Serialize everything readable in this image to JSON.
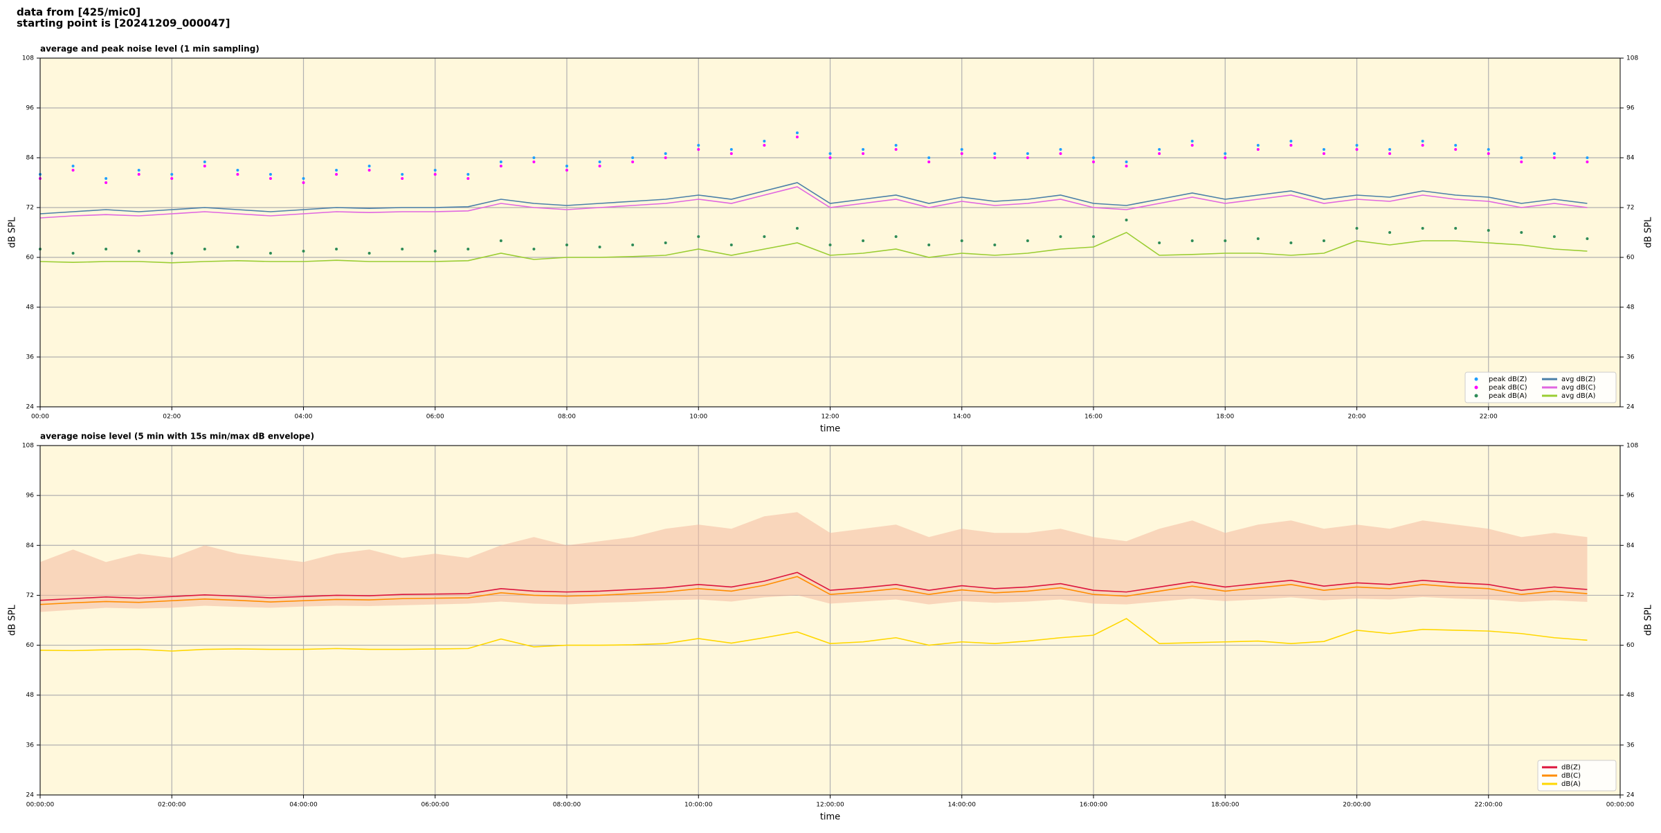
{
  "header": {
    "line1": "data from [425/mic0]",
    "line2": "starting point is [20241209_000047]"
  },
  "chart_data": [
    {
      "type": "line",
      "title": "average and peak noise level (1 min sampling)",
      "xlabel": "time",
      "ylabel": "dB SPL",
      "x": [
        0,
        0.5,
        1,
        1.5,
        2,
        2.5,
        3,
        3.5,
        4,
        4.5,
        5,
        5.5,
        6,
        6.5,
        7,
        7.5,
        8,
        8.5,
        9,
        9.5,
        10,
        10.5,
        11,
        11.5,
        12,
        12.5,
        13,
        13.5,
        14,
        14.5,
        15,
        15.5,
        16,
        16.5,
        17,
        17.5,
        18,
        18.5,
        19,
        19.5,
        20,
        20.5,
        21,
        21.5,
        22,
        22.5,
        23,
        23.5
      ],
      "xlim": [
        0,
        24
      ],
      "xticks": [
        {
          "value": 0,
          "label": "00:00"
        },
        {
          "value": 2,
          "label": "02:00"
        },
        {
          "value": 4,
          "label": "04:00"
        },
        {
          "value": 6,
          "label": "06:00"
        },
        {
          "value": 8,
          "label": "08:00"
        },
        {
          "value": 10,
          "label": "10:00"
        },
        {
          "value": 12,
          "label": "12:00"
        },
        {
          "value": 14,
          "label": "14:00"
        },
        {
          "value": 16,
          "label": "16:00"
        },
        {
          "value": 18,
          "label": "18:00"
        },
        {
          "value": 20,
          "label": "20:00"
        },
        {
          "value": 22,
          "label": "22:00"
        }
      ],
      "ylim": [
        24,
        108
      ],
      "yticks": [
        24,
        36,
        48,
        60,
        72,
        84,
        96,
        108
      ],
      "grid": true,
      "legend": "lower right",
      "legend_columns": 2,
      "series": [
        {
          "name": "peak dB(Z)",
          "style": "dot",
          "color": "#1f9fff",
          "values": [
            80,
            82,
            79,
            81,
            80,
            83,
            81,
            80,
            79,
            81,
            82,
            80,
            81,
            80,
            83,
            84,
            82,
            83,
            84,
            85,
            87,
            86,
            88,
            90,
            85,
            86,
            87,
            84,
            86,
            85,
            85,
            86,
            84,
            83,
            86,
            88,
            85,
            87,
            88,
            86,
            87,
            86,
            88,
            87,
            86,
            84,
            85,
            84
          ]
        },
        {
          "name": "peak dB(C)",
          "style": "dot",
          "color": "#ff00ff",
          "values": [
            79,
            81,
            78,
            80,
            79,
            82,
            80,
            79,
            78,
            80,
            81,
            79,
            80,
            79,
            82,
            83,
            81,
            82,
            83,
            84,
            86,
            85,
            87,
            89,
            84,
            85,
            86,
            83,
            85,
            84,
            84,
            85,
            83,
            82,
            85,
            87,
            84,
            86,
            87,
            85,
            86,
            85,
            87,
            86,
            85,
            83,
            84,
            83
          ]
        },
        {
          "name": "peak dB(A)",
          "style": "dot",
          "color": "#2e8b57",
          "values": [
            62,
            61,
            62,
            61.5,
            61,
            62,
            62.5,
            61,
            61.5,
            62,
            61,
            62,
            61.5,
            62,
            64,
            62,
            63,
            62.5,
            63,
            63.5,
            65,
            63,
            65,
            67,
            63,
            64,
            65,
            63,
            64,
            63,
            64,
            65,
            65,
            69,
            63.5,
            64,
            64,
            64.5,
            63.5,
            64,
            67,
            66,
            67,
            67,
            66.5,
            66,
            65,
            64.5
          ]
        },
        {
          "name": "avg dB(Z)",
          "style": "line",
          "color": "#4a7fa8",
          "values": [
            70.5,
            71,
            71.5,
            71,
            71.5,
            72,
            71.5,
            71,
            71.5,
            72,
            71.8,
            72,
            72,
            72.2,
            74,
            73,
            72.5,
            73,
            73.5,
            74,
            75,
            74,
            76,
            78,
            73,
            74,
            75,
            73,
            74.5,
            73.5,
            74,
            75,
            73,
            72.5,
            74,
            75.5,
            74,
            75,
            76,
            74,
            75,
            74.5,
            76,
            75,
            74.5,
            73,
            74,
            73
          ]
        },
        {
          "name": "avg dB(C)",
          "style": "line",
          "color": "#e066e0",
          "values": [
            69.5,
            70,
            70.3,
            70,
            70.5,
            71,
            70.5,
            70,
            70.5,
            71,
            70.8,
            71,
            71,
            71.2,
            73,
            72,
            71.5,
            72,
            72.5,
            73,
            74,
            73,
            75,
            77,
            72,
            73,
            74,
            72,
            73.5,
            72.5,
            73,
            74,
            72,
            71.5,
            73,
            74.5,
            73,
            74,
            75,
            73,
            74,
            73.5,
            75,
            74,
            73.5,
            72,
            73,
            72
          ]
        },
        {
          "name": "avg dB(A)",
          "style": "line",
          "color": "#9acd32",
          "values": [
            59,
            58.8,
            59,
            59,
            58.7,
            59,
            59.2,
            59,
            59,
            59.3,
            59,
            59,
            59,
            59.2,
            61,
            59.5,
            60,
            60,
            60.2,
            60.5,
            62,
            60.5,
            62,
            63.5,
            60.5,
            61,
            62,
            60,
            61,
            60.5,
            61,
            62,
            62.5,
            66,
            60.5,
            60.7,
            61,
            61,
            60.5,
            61,
            64,
            63,
            64,
            64,
            63.5,
            63,
            62,
            61.5
          ]
        }
      ]
    },
    {
      "type": "line",
      "title": "average noise level (5 min with 15s min/max dB envelope)",
      "xlabel": "time",
      "ylabel": "dB SPL",
      "x": [
        0,
        0.5,
        1,
        1.5,
        2,
        2.5,
        3,
        3.5,
        4,
        4.5,
        5,
        5.5,
        6,
        6.5,
        7,
        7.5,
        8,
        8.5,
        9,
        9.5,
        10,
        10.5,
        11,
        11.5,
        12,
        12.5,
        13,
        13.5,
        14,
        14.5,
        15,
        15.5,
        16,
        16.5,
        17,
        17.5,
        18,
        18.5,
        19,
        19.5,
        20,
        20.5,
        21,
        21.5,
        22,
        22.5,
        23,
        23.5
      ],
      "xlim": [
        0,
        24
      ],
      "xticks": [
        {
          "value": 0,
          "label": "00:00:00"
        },
        {
          "value": 2,
          "label": "02:00:00"
        },
        {
          "value": 4,
          "label": "04:00:00"
        },
        {
          "value": 6,
          "label": "06:00:00"
        },
        {
          "value": 8,
          "label": "08:00:00"
        },
        {
          "value": 10,
          "label": "10:00:00"
        },
        {
          "value": 12,
          "label": "12:00:00"
        },
        {
          "value": 14,
          "label": "14:00:00"
        },
        {
          "value": 16,
          "label": "16:00:00"
        },
        {
          "value": 18,
          "label": "18:00:00"
        },
        {
          "value": 20,
          "label": "20:00:00"
        },
        {
          "value": 22,
          "label": "22:00:00"
        },
        {
          "value": 24,
          "label": "00:00:00"
        }
      ],
      "ylim": [
        24,
        108
      ],
      "yticks": [
        24,
        36,
        48,
        60,
        72,
        84,
        96,
        108
      ],
      "grid": true,
      "legend": "lower right",
      "legend_columns": 1,
      "envelope": {
        "color": "#f4b9a0",
        "lower": [
          68,
          68.5,
          69,
          68.8,
          69,
          69.5,
          69.2,
          69,
          69.3,
          69.5,
          69.4,
          69.6,
          69.8,
          70,
          70.5,
          70,
          69.8,
          70.2,
          70.4,
          70.8,
          71,
          70.5,
          71.5,
          72,
          70,
          70.5,
          71,
          69.8,
          70.6,
          70.2,
          70.5,
          71,
          70,
          69.8,
          70.5,
          71.2,
          70.6,
          71,
          71.5,
          70.8,
          71.2,
          71,
          71.6,
          71.2,
          71,
          70.4,
          70.8,
          70.4
        ],
        "upper": [
          80,
          83,
          80,
          82,
          81,
          84,
          82,
          81,
          80,
          82,
          83,
          81,
          82,
          81,
          84,
          86,
          84,
          85,
          86,
          88,
          89,
          88,
          91,
          92,
          87,
          88,
          89,
          86,
          88,
          87,
          87,
          88,
          86,
          85,
          88,
          90,
          87,
          89,
          90,
          88,
          89,
          88,
          90,
          89,
          88,
          86,
          87,
          86
        ]
      },
      "series": [
        {
          "name": "dB(Z)",
          "style": "line",
          "color": "#dc143c",
          "values": [
            70.8,
            71.2,
            71.6,
            71.3,
            71.7,
            72.1,
            71.8,
            71.4,
            71.7,
            72,
            71.9,
            72.2,
            72.3,
            72.4,
            73.6,
            73,
            72.8,
            73,
            73.4,
            73.8,
            74.6,
            74,
            75.4,
            77.5,
            73.2,
            73.8,
            74.6,
            73.2,
            74.3,
            73.6,
            74,
            74.8,
            73.2,
            72.8,
            74,
            75.2,
            74,
            74.8,
            75.6,
            74.2,
            75,
            74.6,
            75.6,
            75,
            74.6,
            73.2,
            74,
            73.4
          ]
        },
        {
          "name": "dB(C)",
          "style": "line",
          "color": "#ff8c00",
          "values": [
            69.8,
            70.2,
            70.5,
            70.3,
            70.7,
            71.1,
            70.8,
            70.4,
            70.7,
            71,
            70.9,
            71.2,
            71.3,
            71.4,
            72.6,
            72,
            71.8,
            72,
            72.4,
            72.8,
            73.6,
            73,
            74.4,
            76.5,
            72.2,
            72.8,
            73.6,
            72.2,
            73.3,
            72.6,
            73,
            73.8,
            72.2,
            71.8,
            73,
            74.2,
            73,
            73.8,
            74.6,
            73.2,
            74,
            73.6,
            74.6,
            74,
            73.6,
            72.2,
            73,
            72.4
          ]
        },
        {
          "name": "dB(A)",
          "style": "line",
          "color": "#ffd700",
          "values": [
            58.8,
            58.7,
            58.9,
            59,
            58.6,
            59,
            59.1,
            59,
            59,
            59.2,
            59,
            59,
            59.1,
            59.2,
            61.5,
            59.6,
            60,
            60,
            60.1,
            60.4,
            61.6,
            60.5,
            61.8,
            63.2,
            60.4,
            60.8,
            61.8,
            60,
            60.8,
            60.4,
            61,
            61.8,
            62.4,
            66.4,
            60.4,
            60.6,
            60.8,
            61,
            60.4,
            60.9,
            63.6,
            62.8,
            63.8,
            63.6,
            63.4,
            62.8,
            61.8,
            61.2
          ]
        }
      ]
    }
  ]
}
